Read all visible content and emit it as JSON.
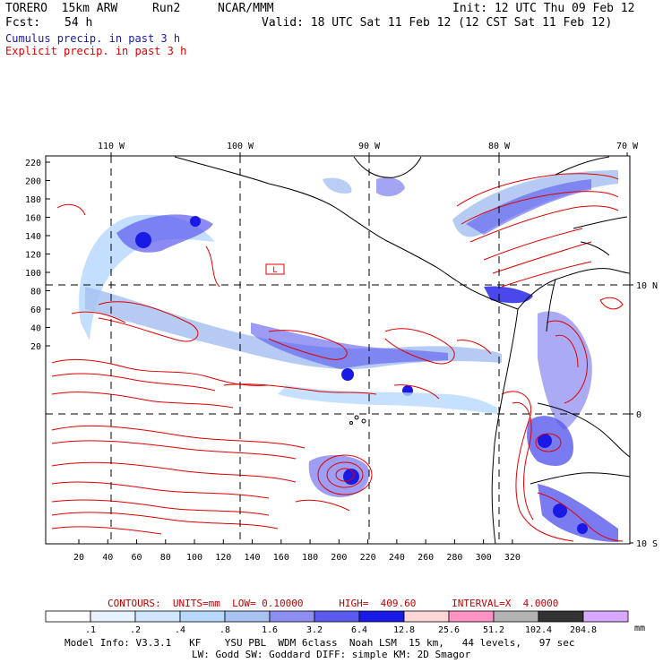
{
  "header": {
    "model": "TORERO  15km ARW",
    "run": "Run2",
    "org": "NCAR/MMM",
    "init": "Init: 12 UTC Thu 09 Feb 12",
    "fcst_label": "Fcst:",
    "fcst_value": "54 h",
    "valid": "Valid: 18 UTC Sat 11 Feb 12 (12 CST Sat 11 Feb 12)"
  },
  "legend": {
    "cumulus": "Cumulus precip. in past 3 h",
    "explicit": "Explicit precip. in past 3 h",
    "cumulus_color": "#1a1aa8",
    "explicit_color": "#e00000"
  },
  "map": {
    "lon_labels": [
      "110 W",
      "100 W",
      "90 W",
      "80 W",
      "70 W"
    ],
    "lat_labels": [
      "10 N",
      "0",
      "10 S"
    ],
    "y_ticks": [
      "220",
      "200",
      "180",
      "160",
      "140",
      "120",
      "100",
      "80",
      "60",
      "40",
      "20"
    ],
    "x_ticks": [
      "20",
      "40",
      "60",
      "80",
      "100",
      "120",
      "140",
      "160",
      "180",
      "200",
      "220",
      "240",
      "260",
      "280",
      "300",
      "320"
    ],
    "land_color": "#000000",
    "grid_color": "#000000",
    "low_box": "L"
  },
  "contours": {
    "text": "CONTOURS:  UNITS=mm  LOW= 0.10000      HIGH=  409.60      INTERVAL=X  4.0000",
    "color": "#c00000"
  },
  "colorbar": {
    "labels": [
      ".1",
      ".2",
      ".4",
      ".8",
      "1.6",
      "3.2",
      "6.4",
      "12.8",
      "25.6",
      "51.2",
      "102.4",
      "204.8"
    ],
    "colors": [
      "#ffffff",
      "#e8f2ff",
      "#d0e6ff",
      "#b8d8ff",
      "#a8c2f2",
      "#8d8df2",
      "#5a5aee",
      "#1a1ae6",
      "#ffd6d6",
      "#ff94c4",
      "#b3b3b3",
      "#333333",
      "#d9a8ff"
    ],
    "unit": "mm"
  },
  "footer": {
    "line1": "Model Info: V3.3.1   KF    YSU PBL  WDM 6class  Noah LSM  15 km,   44 levels,   97 sec",
    "line2": "LW: Godd SW: Goddard DIFF: simple KM: 2D Smagor"
  }
}
